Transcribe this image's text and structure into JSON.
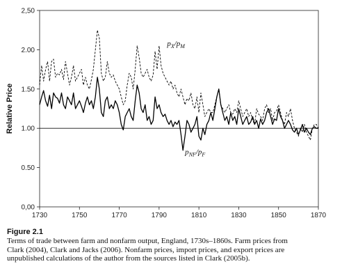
{
  "chart_data": {
    "type": "line",
    "title": "",
    "xlabel": "",
    "ylabel": "Relative Price",
    "xlim": [
      1730,
      1870
    ],
    "ylim": [
      0.0,
      2.5
    ],
    "xticks": [
      1730,
      1750,
      1770,
      1790,
      1810,
      1830,
      1850,
      1870
    ],
    "xtick_labels": [
      "1730",
      "1750",
      "1770",
      "1790",
      "1810",
      "1830",
      "1850",
      "1870"
    ],
    "yticks": [
      0,
      0.5,
      1.0,
      1.5,
      2.0,
      2.5
    ],
    "ytick_labels": [
      "0,00",
      "0.50",
      "1.00",
      "1.50",
      "2.00",
      "2,50"
    ],
    "reference_line": 1.0,
    "grid": false,
    "series": [
      {
        "name": "pX/pM",
        "style": "dashed",
        "x": [
          1730,
          1731,
          1732,
          1733,
          1734,
          1735,
          1736,
          1737,
          1738,
          1739,
          1740,
          1741,
          1742,
          1743,
          1744,
          1745,
          1746,
          1747,
          1748,
          1749,
          1750,
          1751,
          1752,
          1753,
          1754,
          1755,
          1756,
          1757,
          1758,
          1759,
          1760,
          1761,
          1762,
          1763,
          1764,
          1765,
          1766,
          1767,
          1768,
          1769,
          1770,
          1771,
          1772,
          1773,
          1774,
          1775,
          1776,
          1777,
          1778,
          1779,
          1780,
          1781,
          1782,
          1783,
          1784,
          1785,
          1786,
          1787,
          1788,
          1789,
          1790,
          1791,
          1792,
          1793,
          1794,
          1795,
          1796,
          1797,
          1798,
          1799,
          1800,
          1801,
          1802,
          1803,
          1804,
          1805,
          1806,
          1807,
          1808,
          1809,
          1810,
          1811,
          1812,
          1813,
          1814,
          1815,
          1816,
          1817,
          1818,
          1819,
          1820,
          1821,
          1822,
          1823,
          1824,
          1825,
          1826,
          1827,
          1828,
          1829,
          1830,
          1831,
          1832,
          1833,
          1834,
          1835,
          1836,
          1837,
          1838,
          1839,
          1840,
          1841,
          1842,
          1843,
          1844,
          1845,
          1846,
          1847,
          1848,
          1849,
          1850,
          1851,
          1852,
          1853,
          1854,
          1855,
          1856,
          1857,
          1858,
          1859,
          1860,
          1861,
          1862,
          1863,
          1864,
          1865,
          1866,
          1867,
          1868,
          1869,
          1870
        ],
        "y": [
          1.55,
          1.8,
          1.6,
          1.75,
          1.85,
          1.6,
          1.85,
          1.88,
          1.65,
          1.7,
          1.68,
          1.75,
          1.62,
          1.85,
          1.7,
          1.55,
          1.65,
          1.8,
          1.6,
          1.65,
          1.7,
          1.75,
          1.55,
          1.65,
          1.55,
          1.5,
          1.62,
          1.75,
          2.0,
          2.25,
          2.15,
          1.7,
          1.6,
          1.65,
          1.85,
          1.7,
          1.65,
          1.68,
          1.6,
          1.55,
          1.5,
          1.4,
          1.3,
          1.35,
          1.55,
          1.7,
          1.65,
          1.5,
          1.75,
          2.05,
          1.9,
          1.7,
          1.65,
          1.7,
          1.75,
          1.65,
          1.6,
          1.68,
          1.98,
          1.75,
          2.05,
          1.8,
          1.7,
          1.65,
          1.6,
          1.55,
          1.6,
          1.5,
          1.55,
          1.45,
          1.4,
          1.5,
          1.4,
          1.3,
          1.38,
          1.35,
          1.45,
          1.3,
          1.25,
          1.4,
          1.2,
          1.45,
          1.3,
          1.15,
          1.2,
          1.25,
          1.2,
          1.2,
          1.3,
          1.4,
          1.5,
          1.3,
          1.25,
          1.2,
          1.25,
          1.3,
          1.2,
          1.18,
          1.25,
          1.2,
          1.35,
          1.25,
          1.15,
          1.2,
          1.25,
          1.15,
          1.2,
          1.1,
          1.05,
          1.25,
          1.18,
          1.15,
          1.1,
          1.25,
          1.3,
          1.2,
          1.25,
          1.1,
          1.2,
          1.22,
          1.3,
          1.2,
          1.1,
          1.05,
          1.2,
          1.15,
          1.25,
          1.1,
          1.0,
          0.95,
          0.9,
          1.0,
          0.95,
          1.05,
          0.95,
          0.9,
          0.85,
          1.0,
          1.05,
          1.05,
          1.0
        ]
      },
      {
        "name": "pNF/pF",
        "style": "solid",
        "x": [
          1730,
          1731,
          1732,
          1733,
          1734,
          1735,
          1736,
          1737,
          1738,
          1739,
          1740,
          1741,
          1742,
          1743,
          1744,
          1745,
          1746,
          1747,
          1748,
          1749,
          1750,
          1751,
          1752,
          1753,
          1754,
          1755,
          1756,
          1757,
          1758,
          1759,
          1760,
          1761,
          1762,
          1763,
          1764,
          1765,
          1766,
          1767,
          1768,
          1769,
          1770,
          1771,
          1772,
          1773,
          1774,
          1775,
          1776,
          1777,
          1778,
          1779,
          1780,
          1781,
          1782,
          1783,
          1784,
          1785,
          1786,
          1787,
          1788,
          1789,
          1790,
          1791,
          1792,
          1793,
          1794,
          1795,
          1796,
          1797,
          1798,
          1799,
          1800,
          1801,
          1802,
          1803,
          1804,
          1805,
          1806,
          1807,
          1808,
          1809,
          1810,
          1811,
          1812,
          1813,
          1814,
          1815,
          1816,
          1817,
          1818,
          1819,
          1820,
          1821,
          1822,
          1823,
          1824,
          1825,
          1826,
          1827,
          1828,
          1829,
          1830,
          1831,
          1832,
          1833,
          1834,
          1835,
          1836,
          1837,
          1838,
          1839,
          1840,
          1841,
          1842,
          1843,
          1844,
          1845,
          1846,
          1847,
          1848,
          1849,
          1850,
          1851,
          1852,
          1853,
          1854,
          1855,
          1856,
          1857,
          1858,
          1859,
          1860,
          1861,
          1862,
          1863,
          1864,
          1865,
          1866,
          1867,
          1868,
          1869,
          1870
        ],
        "y": [
          1.3,
          1.4,
          1.48,
          1.35,
          1.28,
          1.42,
          1.25,
          1.45,
          1.4,
          1.38,
          1.32,
          1.45,
          1.3,
          1.25,
          1.4,
          1.35,
          1.3,
          1.45,
          1.25,
          1.3,
          1.35,
          1.28,
          1.2,
          1.32,
          1.4,
          1.3,
          1.35,
          1.25,
          1.4,
          1.65,
          1.5,
          1.2,
          1.15,
          1.35,
          1.4,
          1.25,
          1.3,
          1.25,
          1.35,
          1.3,
          1.2,
          1.05,
          0.98,
          1.15,
          1.2,
          1.25,
          1.15,
          1.1,
          1.35,
          1.55,
          1.45,
          1.25,
          1.2,
          1.3,
          1.1,
          1.15,
          1.05,
          1.1,
          1.4,
          1.25,
          1.3,
          1.2,
          1.15,
          1.18,
          1.1,
          1.05,
          1.1,
          1.02,
          1.08,
          1.05,
          1.1,
          0.92,
          0.72,
          0.9,
          1.1,
          1.05,
          0.95,
          1.0,
          1.05,
          1.15,
          0.9,
          0.85,
          1.0,
          0.92,
          1.05,
          1.1,
          1.2,
          1.1,
          1.25,
          1.4,
          1.5,
          1.3,
          1.2,
          1.1,
          1.15,
          1.05,
          1.2,
          1.1,
          1.15,
          1.05,
          1.25,
          1.15,
          1.05,
          1.1,
          1.15,
          1.05,
          1.08,
          1.15,
          1.05,
          1.1,
          1.0,
          1.12,
          1.05,
          1.1,
          1.2,
          1.25,
          1.15,
          1.05,
          1.12,
          1.1,
          1.25,
          1.15,
          1.1,
          1.0,
          1.05,
          1.1,
          1.05,
          0.98,
          0.95,
          1.0,
          0.92,
          0.98,
          1.05,
          0.95,
          1.0,
          0.95,
          0.92,
          1.0,
          1.02,
          1.0,
          1.0
        ]
      }
    ],
    "annotations": [
      {
        "series": "pX/pM",
        "text_main1": "p",
        "sub1": "X",
        "slash": "/",
        "text_main2": "p",
        "sub2": "M",
        "x": 1794,
        "y": 2.05
      },
      {
        "series": "pNF/pF",
        "text_main1": "p",
        "sub1": "NF",
        "slash": "/",
        "text_main2": "p",
        "sub2": "F",
        "x": 1803,
        "y": 0.67
      }
    ]
  },
  "caption": {
    "figure_label": "Figure 2.1",
    "lines": [
      "Terms of trade between farm and nonfarm output, England, 1730s–1860s. Farm prices from",
      "Clark (2004), Clark and Jacks (2006). Nonfarm prices, import prices, and export prices are",
      "unpublished calculations of the author from the sources listed in Clark (2005b)."
    ]
  }
}
